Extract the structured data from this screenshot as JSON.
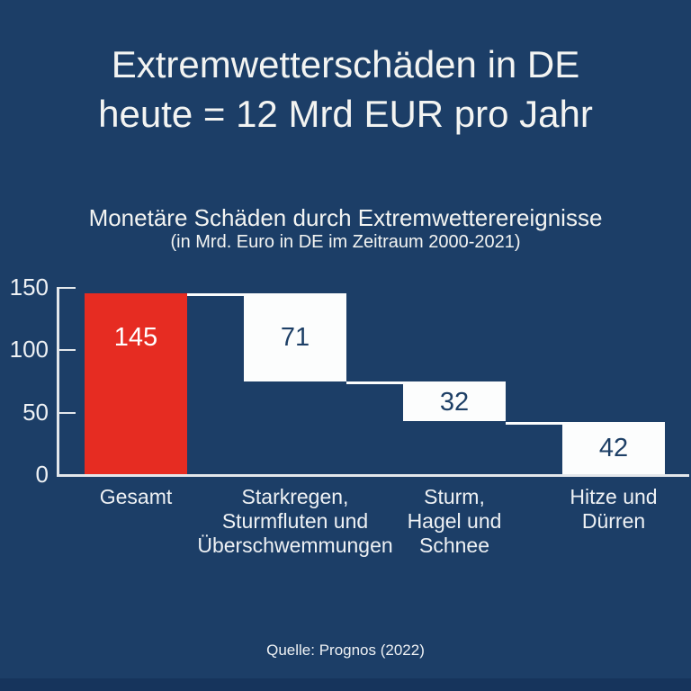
{
  "page": {
    "background_color": "#1c3e67",
    "footer_strip_color": "#16345c",
    "title_line1": "Extremwetterschäden in DE",
    "title_line2": "heute = 12 Mrd EUR pro Jahr",
    "source": "Quelle: Prognos (2022)"
  },
  "chart_data": {
    "type": "waterfall",
    "title": "Monetäre Schäden durch Extremwetterereignisse",
    "subtitle": "(in Mrd. Euro in DE im Zeitraum 2000-2021)",
    "unit": "Mrd. Euro",
    "categories": [
      "Gesamt",
      "Starkregen,\nSturmfluten und\nÜberschwemmungen",
      "Sturm,\nHagel und\nSchnee",
      "Hitze und\nDürren"
    ],
    "values": [
      145,
      71,
      32,
      42
    ],
    "segments": [
      {
        "from": 0,
        "to": 145
      },
      {
        "from": 74,
        "to": 145
      },
      {
        "from": 42,
        "to": 74
      },
      {
        "from": 0,
        "to": 42
      }
    ],
    "ylim": [
      0,
      150
    ],
    "yticks": [
      0,
      50,
      100,
      150
    ],
    "grid": false,
    "legend": false,
    "xlabel": "",
    "ylabel": "",
    "colors": {
      "total_bar": "#e62c22",
      "breakdown_bar": "#fcfdfd",
      "connector": "#fcfdfd",
      "value_label_on_total": "#ffffff",
      "value_label_on_breakdown": "#1d3f66",
      "axis": "#e3e7eb",
      "text": "#eef1f4"
    }
  }
}
